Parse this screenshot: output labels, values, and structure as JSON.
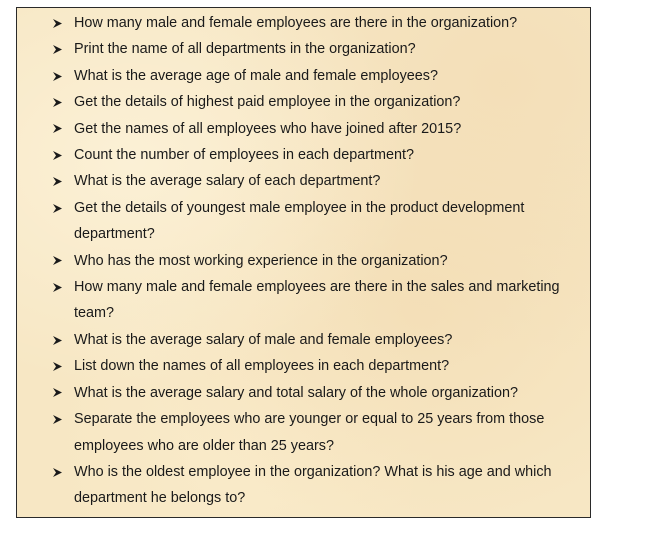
{
  "questions": [
    "How many male and female employees are there in the organization?",
    "Print the name of all departments in the organization?",
    "What is the average age of male and female employees?",
    "Get the details of highest paid employee in the organization?",
    "Get the names of all employees who have joined after 2015?",
    "Count the number of employees in each department?",
    "What is the average salary of each department?",
    "Get the details of youngest male employee in the product development department?",
    "Who has the most working experience in the organization?",
    "How many male and female employees are there in the sales and marketing team?",
    "What is the average salary of male and female employees?",
    "List down the names of all employees in each department?",
    "What is the average salary and total salary of the whole organization?",
    "Separate the employees who are younger or equal to 25 years from those employees who are older than 25 years?",
    "Who is the oldest employee in the organization? What is his age and which department he belongs to?"
  ],
  "bullet_icon": "arrowhead-bullet-icon",
  "colors": {
    "background": "#f7e7c4",
    "border": "#2a2a2a",
    "text": "#1a1a1a"
  }
}
